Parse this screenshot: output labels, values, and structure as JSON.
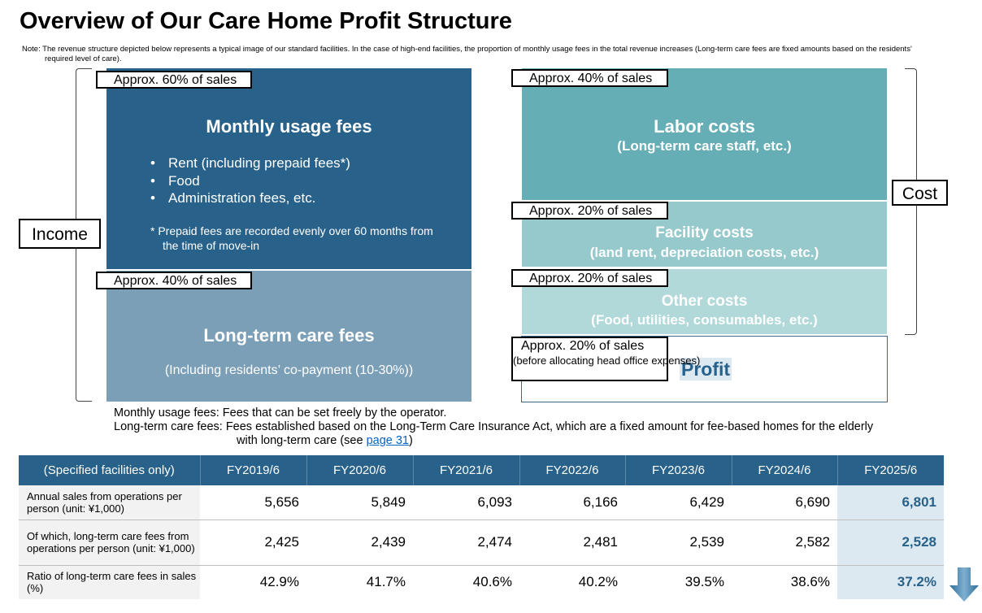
{
  "title": "Overview of Our Care Home Profit Structure",
  "note": "Note: The revenue structure depicted below represents a typical image of our standard facilities. In the case of high-end facilities, the proportion of monthly usage fees in the total revenue increases (Long-term care fees are fixed amounts based on the residents' required level of care).",
  "income": {
    "label": "Income",
    "monthly": {
      "share": "Approx. 60% of sales",
      "title": "Monthly usage fees",
      "items": [
        "Rent (including prepaid fees*)",
        "Food",
        "Administration fees, etc."
      ],
      "footnote": "* Prepaid fees are recorded evenly over 60 months from the time of move-in"
    },
    "ltc": {
      "share": "Approx. 40% of sales",
      "title": "Long-term care fees",
      "subtitle": "(Including residents’ co-payment (10-30%))"
    }
  },
  "cost": {
    "label": "Cost",
    "labor": {
      "share": "Approx. 40% of sales",
      "title": "Labor costs",
      "subtitle": "(Long-term care staff, etc.)"
    },
    "facility": {
      "share": "Approx. 20% of sales",
      "title": "Facility costs",
      "subtitle": "(land rent, depreciation costs, etc.)"
    },
    "other": {
      "share": "Approx. 20% of sales",
      "title": "Other costs",
      "subtitle": "(Food, utilities, consumables, etc.)"
    }
  },
  "profit": {
    "share": "Approx. 20% of sales",
    "share_note": "(before allocating head office expenses)",
    "title": "Profit"
  },
  "definitions": {
    "monthly": "Monthly usage fees:  Fees that can be set freely by the operator.",
    "ltc_line1": "Long-term care fees: Fees established based on the Long-Term Care Insurance Act, which are a fixed amount for fee-based homes for the elderly",
    "ltc_line2_pre": "with long-term care (see ",
    "ltc_link": "page 31",
    "ltc_line2_post": ")"
  },
  "table": {
    "headers": [
      "(Specified facilities only)",
      "FY2019/6",
      "FY2020/6",
      "FY2021/6",
      "FY2022/6",
      "FY2023/6",
      "FY2024/6",
      "FY2025/6"
    ],
    "rows": [
      {
        "label": "Annual sales from operations per person (unit: ¥1,000)",
        "values": [
          "5,656",
          "5,849",
          "6,093",
          "6,166",
          "6,429",
          "6,690",
          "6,801"
        ]
      },
      {
        "label": "Of which, long-term care fees from operations per person (unit: ¥1,000)",
        "values": [
          "2,425",
          "2,439",
          "2,474",
          "2,481",
          "2,539",
          "2,582",
          "2,528"
        ]
      },
      {
        "label": "Ratio of long-term care fees in sales (%)",
        "values": [
          "42.9%",
          "41.7%",
          "40.6%",
          "40.2%",
          "39.5%",
          "38.6%",
          "37.2%"
        ]
      }
    ]
  },
  "colors": {
    "dark_blue": "#286189",
    "light_blue": "#7b9fb7",
    "teal": "#66aeb5",
    "teal_light": "#95c9cc",
    "teal_lighter": "#b2d9da",
    "highlight": "#dde9f1"
  },
  "icons": {
    "trend": "down-arrow-icon"
  }
}
